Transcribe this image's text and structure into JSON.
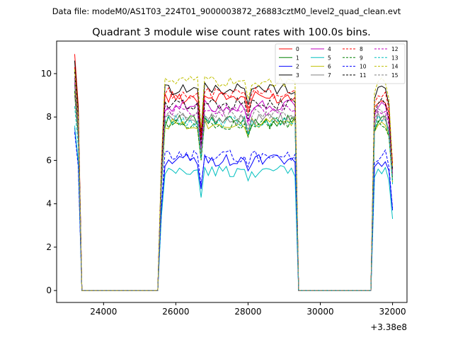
{
  "suptitle": "Data file: modeM0/AS1T03_224T01_9000003872_26883cztM0_level2_quad_clean.evt",
  "chart_data": {
    "type": "line",
    "title": "Quadrant 3 module wise count rates with 100.0s bins.",
    "xlabel": "",
    "ylabel": "",
    "x_offset_label": "+3.38e8",
    "xlim": [
      22700,
      32400
    ],
    "ylim": [
      -0.55,
      11.5
    ],
    "x_ticks": [
      24000,
      26000,
      28000,
      30000,
      32000
    ],
    "x_tick_labels": [
      "24000",
      "26000",
      "28000",
      "30000",
      "32000"
    ],
    "y_ticks": [
      0,
      2,
      4,
      6,
      8,
      10
    ],
    "y_tick_labels": [
      "0",
      "2",
      "4",
      "6",
      "8",
      "10"
    ],
    "grid": false,
    "legend_position": "top-right",
    "x": [
      23200,
      23300,
      23400,
      23500,
      25500,
      25600,
      25700,
      25800,
      25900,
      26000,
      26100,
      26200,
      26300,
      26400,
      26500,
      26600,
      26700,
      26800,
      26900,
      27000,
      27100,
      27200,
      27300,
      27400,
      27500,
      27600,
      27700,
      27800,
      27900,
      28000,
      28100,
      28200,
      28300,
      28400,
      28500,
      28600,
      28700,
      28800,
      28900,
      29000,
      29100,
      29200,
      29300,
      29400,
      29500,
      31400,
      31500,
      31600,
      31700,
      31800,
      31900,
      32000
    ],
    "series": [
      {
        "name": "0",
        "color": "#ff0000",
        "dash": "solid",
        "start": 10.9,
        "mean": 8.9,
        "end": 5.9
      },
      {
        "name": "1",
        "color": "#008000",
        "dash": "solid",
        "start": 9.5,
        "mean": 7.8,
        "end": 5.0
      },
      {
        "name": "2",
        "color": "#0000ff",
        "dash": "solid",
        "start": 7.5,
        "mean": 6.0,
        "end": 3.7
      },
      {
        "name": "3",
        "color": "#000000",
        "dash": "solid",
        "start": 10.6,
        "mean": 9.3,
        "end": 5.6
      },
      {
        "name": "4",
        "color": "#bf00bf",
        "dash": "solid",
        "start": 9.8,
        "mean": 8.5,
        "end": 5.4
      },
      {
        "name": "5",
        "color": "#00bfbf",
        "dash": "solid",
        "start": 7.6,
        "mean": 5.5,
        "end": 3.3
      },
      {
        "name": "6",
        "color": "#bfbf00",
        "dash": "solid",
        "start": 9.2,
        "mean": 7.7,
        "end": 5.0
      },
      {
        "name": "7",
        "color": "#808080",
        "dash": "solid",
        "start": 9.0,
        "mean": 7.9,
        "end": 5.2
      },
      {
        "name": "8",
        "color": "#ff0000",
        "dash": "dashed",
        "start": 10.3,
        "mean": 9.1,
        "end": 5.8
      },
      {
        "name": "9",
        "color": "#008000",
        "dash": "dashed",
        "start": 9.2,
        "mean": 7.7,
        "end": 5.1
      },
      {
        "name": "10",
        "color": "#0000ff",
        "dash": "dashed",
        "start": 7.3,
        "mean": 6.2,
        "end": 3.8
      },
      {
        "name": "11",
        "color": "#000000",
        "dash": "dashed",
        "start": 10.1,
        "mean": 8.6,
        "end": 5.5
      },
      {
        "name": "12",
        "color": "#bf00bf",
        "dash": "dashed",
        "start": 9.6,
        "mean": 8.3,
        "end": 5.4
      },
      {
        "name": "13",
        "color": "#00bfbf",
        "dash": "dashed",
        "start": 8.5,
        "mean": 7.8,
        "end": 4.9
      },
      {
        "name": "14",
        "color": "#bfbf00",
        "dash": "dashed",
        "start": 10.2,
        "mean": 9.6,
        "end": 5.7
      },
      {
        "name": "15",
        "color": "#808080",
        "dash": "dashed",
        "start": 9.7,
        "mean": 8.1,
        "end": 5.3
      }
    ]
  }
}
